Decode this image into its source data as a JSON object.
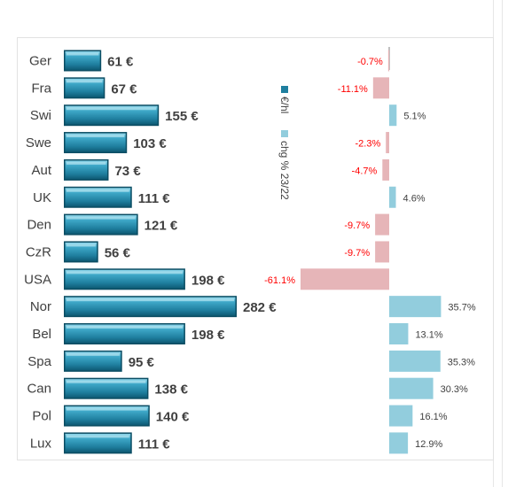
{
  "chart_data": {
    "type": "bar",
    "categories": [
      "Ger",
      "Fra",
      "Swi",
      "Swe",
      "Aut",
      "UK",
      "Den",
      "CzR",
      "USA",
      "Nor",
      "Bel",
      "Spa",
      "Can",
      "Pol",
      "Lux"
    ],
    "series": [
      {
        "name": "€/hl",
        "values": [
          61,
          67,
          155,
          103,
          73,
          111,
          121,
          56,
          198,
          282,
          198,
          95,
          138,
          140,
          111
        ],
        "labels": [
          "61 €",
          "67 €",
          "155 €",
          "103 €",
          "73 €",
          "111 €",
          "121 €",
          "56 €",
          "198 €",
          "282 €",
          "198 €",
          "95 €",
          "138 €",
          "140 €",
          "111 €"
        ],
        "color": "#2a8fb0"
      },
      {
        "name": "chg % 23/22",
        "values": [
          -0.7,
          -11.1,
          5.1,
          -2.3,
          -4.7,
          4.6,
          -9.7,
          -9.7,
          -61.1,
          35.7,
          13.1,
          35.3,
          30.3,
          16.1,
          12.9
        ],
        "labels": [
          "-0.7%",
          "-11.1%",
          "5.1%",
          "-2.3%",
          "-4.7%",
          "4.6%",
          "-9.7%",
          "-9.7%",
          "-61.1%",
          "35.7%",
          "13.1%",
          "35.3%",
          "30.3%",
          "16.1%",
          "12.9%"
        ],
        "positive_color": "#92cddd",
        "negative_color": "#e6b5b8",
        "negative_label_color": "#ff0000"
      }
    ],
    "legend_position": "center (vertical)",
    "grid": false
  }
}
